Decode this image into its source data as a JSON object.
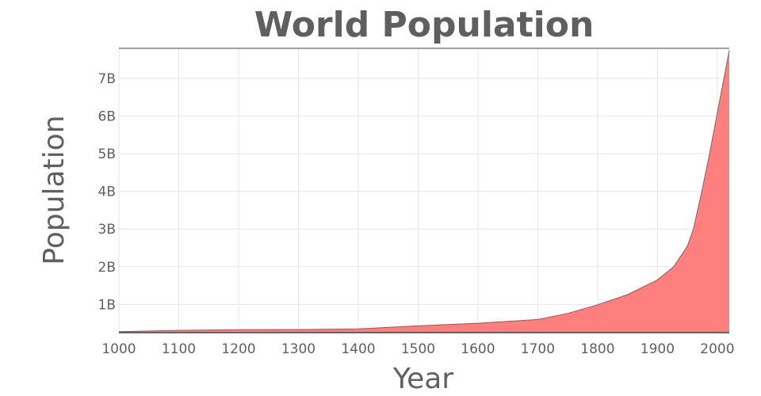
{
  "chart_data": {
    "type": "area",
    "title": "World Population",
    "xlabel": "Year",
    "ylabel": "Population",
    "xlim": [
      1000,
      2020
    ],
    "ylim": [
      250000000,
      7800000000
    ],
    "grid": true,
    "legend": "none",
    "x_ticks": [
      1000,
      1100,
      1200,
      1300,
      1400,
      1500,
      1600,
      1700,
      1800,
      1900,
      2000
    ],
    "x_tick_labels": [
      "1000",
      "1100",
      "1200",
      "1300",
      "1400",
      "1500",
      "1600",
      "1700",
      "1800",
      "1900",
      "2000"
    ],
    "y_ticks": [
      1000000000,
      2000000000,
      3000000000,
      4000000000,
      5000000000,
      6000000000,
      7000000000
    ],
    "y_tick_labels": [
      "1B",
      "2B",
      "3B",
      "4B",
      "5B",
      "6B",
      "7B"
    ],
    "fill_color": "#ff7f7f",
    "line_color": "#6b6b6b",
    "series": [
      {
        "x": [
          1000,
          1100,
          1200,
          1300,
          1400,
          1500,
          1600,
          1700,
          1750,
          1800,
          1850,
          1900,
          1927,
          1950,
          1960,
          1974,
          1987,
          1999,
          2011,
          2020
        ],
        "values": [
          275000000,
          310000000,
          330000000,
          335000000,
          350000000,
          430000000,
          500000000,
          600000000,
          760000000,
          990000000,
          1260000000,
          1650000000,
          2000000000,
          2550000000,
          3000000000,
          4000000000,
          5000000000,
          6000000000,
          7000000000,
          7750000000
        ]
      }
    ]
  }
}
